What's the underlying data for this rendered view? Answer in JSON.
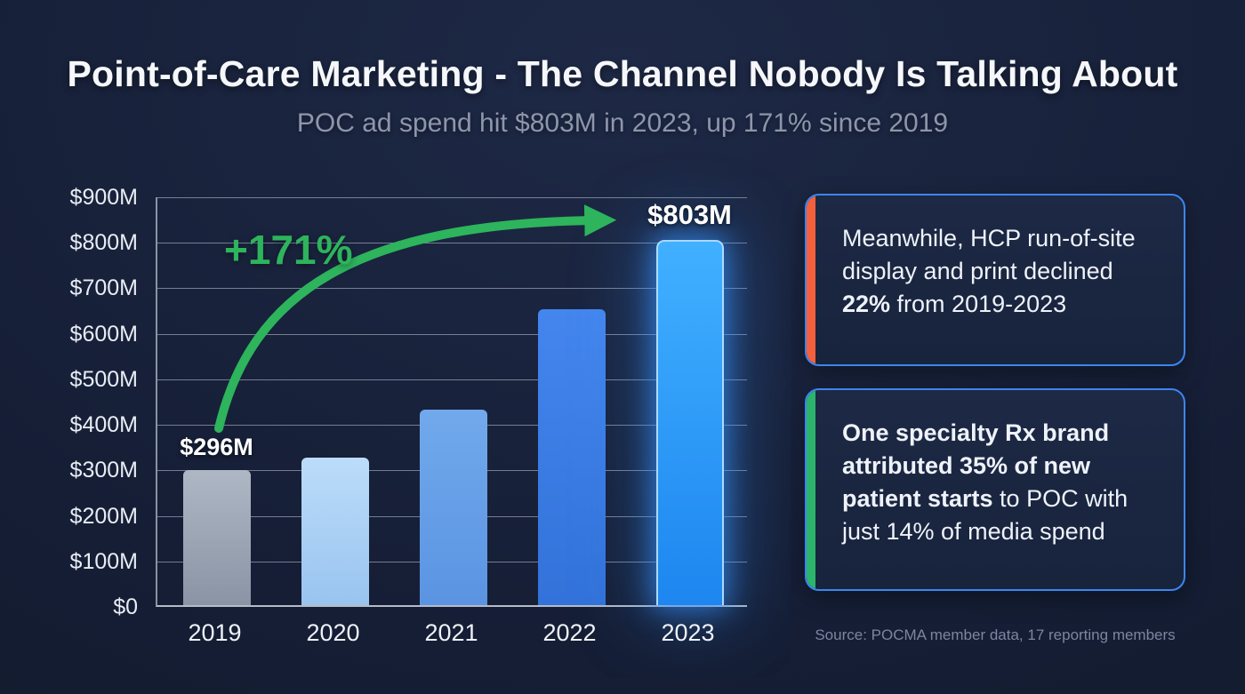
{
  "header": {
    "title": "Point-of-Care Marketing - The Channel Nobody Is Talking About",
    "subtitle": "POC ad spend hit $803M in 2023, up 171% since 2019"
  },
  "chart_data": {
    "type": "bar",
    "categories": [
      "2019",
      "2020",
      "2021",
      "2022",
      "2023"
    ],
    "values": [
      296,
      325,
      430,
      650,
      803
    ],
    "ylim": [
      0,
      900
    ],
    "y_ticks": [
      "$900M",
      "$800M",
      "$700M",
      "$600M",
      "$500M",
      "$400M",
      "$300M",
      "$200M",
      "$100M",
      "$0"
    ],
    "bar_labels": [
      "$296M",
      "",
      "",
      "",
      "$803M"
    ],
    "bar_colors": [
      [
        "#aeb7c4",
        "#8a94a5"
      ],
      [
        "#bcdcfa",
        "#99c4ef"
      ],
      [
        "#72a9ec",
        "#5a94e2"
      ],
      [
        "#4486ee",
        "#3272d9"
      ],
      [
        "#41b0ff",
        "#1d86f0"
      ]
    ],
    "highlight_index": 4,
    "growth_label": "+171%",
    "grid": true,
    "legend": false,
    "xlabel": "",
    "ylabel": ""
  },
  "callouts": [
    {
      "accent_color": "#f4603c",
      "segments": [
        {
          "text": "Meanwhile, HCP run-of-site display and print declined ",
          "bold": false
        },
        {
          "text": "22%",
          "bold": true
        },
        {
          "text": " from 2019-2023",
          "bold": false
        }
      ]
    },
    {
      "accent_color": "#2db46c",
      "segments": [
        {
          "text": "One specialty Rx brand attributed 35% of new patient starts",
          "bold": true
        },
        {
          "text": " to POC with just 14% of media spend",
          "bold": false
        }
      ]
    }
  ],
  "footer": {
    "source": "Source: POCMA member data, 17 reporting members"
  },
  "colors": {
    "background": "#151e35",
    "growth_green": "#2db45c",
    "card_border": "#3d85f0",
    "highlight_bar_glow": "#3894ff",
    "bar_2019": "#9aa4b3",
    "bar_2023": "#2a9dff"
  }
}
